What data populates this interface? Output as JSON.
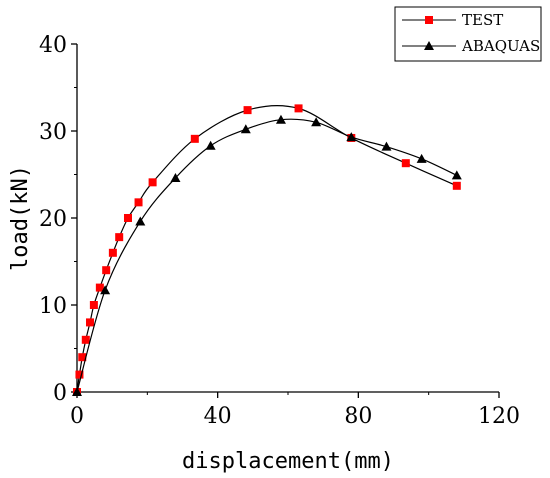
{
  "chart_data": {
    "type": "line",
    "title": "",
    "xlabel": "displacement(mm)",
    "ylabel": "load(kN)",
    "xlim": [
      0,
      120
    ],
    "ylim": [
      0,
      40
    ],
    "x_ticks": [
      0,
      40,
      80,
      120
    ],
    "y_ticks": [
      0,
      10,
      20,
      30,
      40
    ],
    "legend_position": "top-right",
    "grid": false,
    "series": [
      {
        "name": "TEST",
        "color": "#ff0000",
        "line_color": "#000000",
        "marker": "square",
        "x": [
          0,
          0.7,
          1.5,
          2.5,
          3.7,
          4.8,
          6.5,
          8.3,
          10.2,
          12.0,
          14.5,
          17.5,
          21.5,
          33.5,
          48.5,
          63.0,
          78.0,
          93.5,
          108.0
        ],
        "y": [
          0,
          2.0,
          4.0,
          6.0,
          8.0,
          10.0,
          12.0,
          14.0,
          16.0,
          17.8,
          20.0,
          21.8,
          24.1,
          29.1,
          32.4,
          32.6,
          29.2,
          26.3,
          23.7
        ]
      },
      {
        "name": "ABAQUAS",
        "color": "#000000",
        "line_color": "#000000",
        "marker": "triangle",
        "x": [
          0,
          8.0,
          18.0,
          28.0,
          38.0,
          48.0,
          58.0,
          68.0,
          78.0,
          88.0,
          98.0,
          108.0
        ],
        "y": [
          0,
          11.7,
          19.6,
          24.6,
          28.3,
          30.2,
          31.3,
          31.0,
          29.3,
          28.2,
          26.8,
          24.9
        ]
      }
    ]
  }
}
